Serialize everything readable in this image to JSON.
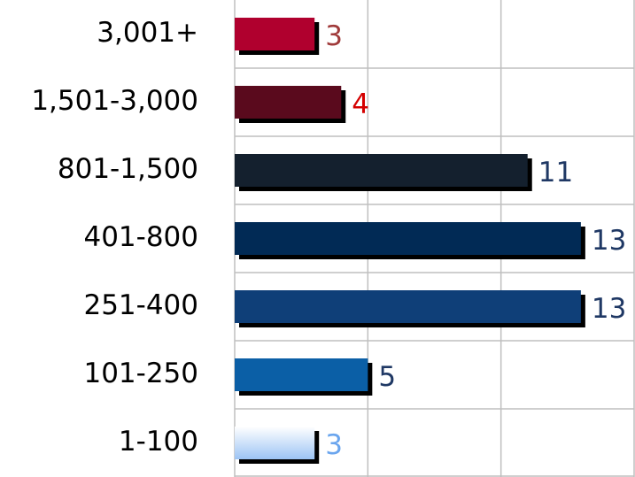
{
  "chart_data": {
    "type": "bar",
    "orientation": "horizontal",
    "categories": [
      "3,001+",
      "1,501-3,000",
      "801-1,500",
      "401-800",
      "251-400",
      "101-250",
      "1-100"
    ],
    "values": [
      3,
      4,
      11,
      13,
      13,
      5,
      3
    ],
    "colors": [
      "#b0002e",
      "#5a0a1d",
      "#14202e",
      "#012a55",
      "#0f3f78",
      "#0b5fa6",
      "#9cc4f4"
    ],
    "label_colors": [
      "#a03a3a",
      "#d40000",
      "#1f3864",
      "#1f3864",
      "#1f3864",
      "#1f3864",
      "#6aa5ee"
    ],
    "xlim": [
      0,
      15
    ],
    "xticks": [
      0,
      5,
      10,
      15
    ],
    "grid": true
  }
}
